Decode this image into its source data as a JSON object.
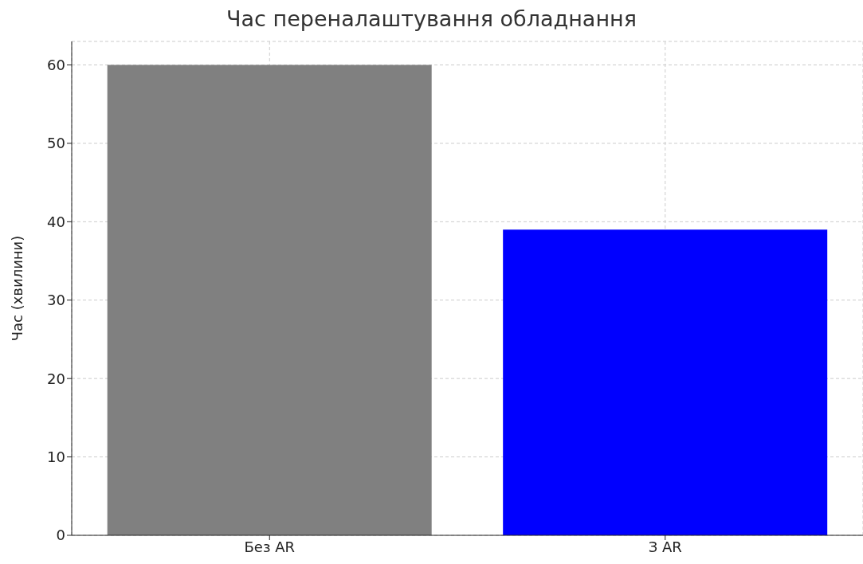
{
  "chart_data": {
    "type": "bar",
    "title": "Час переналаштування обладнання",
    "ylabel": "Час (хвилини)",
    "categories": [
      "Без AR",
      "З AR"
    ],
    "values": [
      60,
      39
    ],
    "colors": [
      "#808080",
      "#0000ff"
    ],
    "ylim": [
      0,
      63
    ],
    "yticks": [
      0,
      10,
      20,
      30,
      40,
      50,
      60
    ],
    "grid": true
  }
}
